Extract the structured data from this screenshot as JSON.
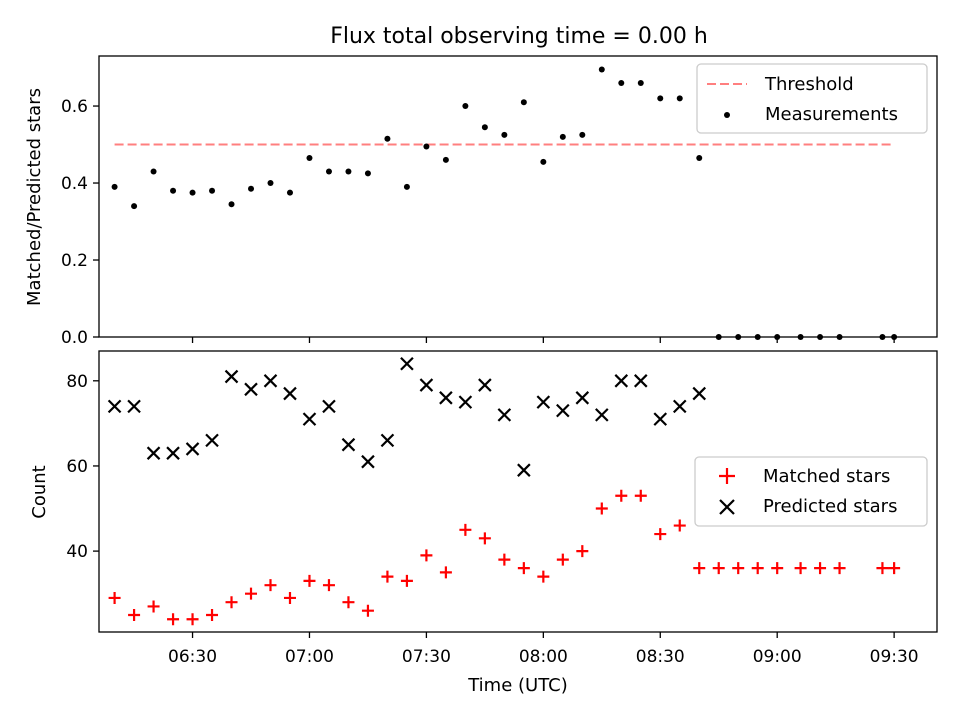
{
  "figure": {
    "title": "Flux total observing time = 0.00 h"
  },
  "chart_data": [
    {
      "type": "scatter",
      "xlabel": "",
      "ylabel": "Matched/Predicted stars",
      "xlim": [
        "06:06",
        "09:41"
      ],
      "ylim": [
        0,
        0.73
      ],
      "yticks": [
        0.0,
        0.2,
        0.4,
        0.6
      ],
      "ytick_labels": [
        "0.0",
        "0.2",
        "0.4",
        "0.6"
      ],
      "legend_position": "top-right",
      "grid": false,
      "series": [
        {
          "name": "Threshold",
          "kind": "dashed-line",
          "color": "#ff7f7f",
          "x": [
            "06:10",
            "09:30"
          ],
          "y": [
            0.5,
            0.5
          ]
        },
        {
          "name": "Measurements",
          "kind": "points",
          "color": "#000000",
          "x": [
            "06:10",
            "06:15",
            "06:20",
            "06:25",
            "06:30",
            "06:35",
            "06:40",
            "06:45",
            "06:50",
            "06:55",
            "07:00",
            "07:05",
            "07:10",
            "07:15",
            "07:20",
            "07:25",
            "07:30",
            "07:35",
            "07:40",
            "07:45",
            "07:50",
            "07:55",
            "08:00",
            "08:05",
            "08:10",
            "08:15",
            "08:20",
            "08:25",
            "08:30",
            "08:35",
            "08:40",
            "08:45",
            "08:50",
            "08:55",
            "09:00",
            "09:06",
            "09:11",
            "09:16",
            "09:27",
            "09:30"
          ],
          "y": [
            0.39,
            0.34,
            0.43,
            0.38,
            0.375,
            0.38,
            0.345,
            0.385,
            0.4,
            0.375,
            0.465,
            0.43,
            0.43,
            0.425,
            0.515,
            0.39,
            0.495,
            0.46,
            0.6,
            0.545,
            0.525,
            0.61,
            0.455,
            0.52,
            0.525,
            0.695,
            0.66,
            0.66,
            0.62,
            0.62,
            0.465,
            0.0,
            0.0,
            0.0,
            0.0,
            0.0,
            0.0,
            0.0,
            0.0,
            0.0
          ]
        }
      ]
    },
    {
      "type": "scatter",
      "xlabel": "Time (UTC)",
      "ylabel": "Count",
      "xlim": [
        "06:06",
        "09:41"
      ],
      "ylim": [
        21,
        87
      ],
      "yticks": [
        40,
        60,
        80
      ],
      "ytick_labels": [
        "40",
        "60",
        "80"
      ],
      "xticks": [
        "06:30",
        "07:00",
        "07:30",
        "08:00",
        "08:30",
        "09:00",
        "09:30"
      ],
      "xtick_labels": [
        "06:30",
        "07:00",
        "07:30",
        "08:00",
        "08:30",
        "09:00",
        "09:30"
      ],
      "legend_position": "center-right",
      "grid": false,
      "series": [
        {
          "name": "Matched stars",
          "marker": "+",
          "color": "#ff0000",
          "x": [
            "06:10",
            "06:15",
            "06:20",
            "06:25",
            "06:30",
            "06:35",
            "06:40",
            "06:45",
            "06:50",
            "06:55",
            "07:00",
            "07:05",
            "07:10",
            "07:15",
            "07:20",
            "07:25",
            "07:30",
            "07:35",
            "07:40",
            "07:45",
            "07:50",
            "07:55",
            "08:00",
            "08:05",
            "08:10",
            "08:15",
            "08:20",
            "08:25",
            "08:30",
            "08:35",
            "08:40",
            "08:45",
            "08:50",
            "08:55",
            "09:00",
            "09:06",
            "09:11",
            "09:16",
            "09:27",
            "09:30"
          ],
          "y": [
            29,
            25,
            27,
            24,
            24,
            25,
            28,
            30,
            32,
            29,
            33,
            32,
            28,
            26,
            34,
            33,
            39,
            35,
            45,
            43,
            38,
            36,
            34,
            38,
            40,
            50,
            53,
            53,
            44,
            46,
            36,
            36,
            36,
            36,
            36,
            36,
            36,
            36,
            36,
            36
          ]
        },
        {
          "name": "Predicted stars",
          "marker": "x",
          "color": "#000000",
          "x": [
            "06:10",
            "06:15",
            "06:20",
            "06:25",
            "06:30",
            "06:35",
            "06:40",
            "06:45",
            "06:50",
            "06:55",
            "07:00",
            "07:05",
            "07:10",
            "07:15",
            "07:20",
            "07:25",
            "07:30",
            "07:35",
            "07:40",
            "07:45",
            "07:50",
            "07:55",
            "08:00",
            "08:05",
            "08:10",
            "08:15",
            "08:20",
            "08:25",
            "08:30",
            "08:35",
            "08:40"
          ],
          "y": [
            74,
            74,
            63,
            63,
            64,
            66,
            81,
            78,
            80,
            77,
            71,
            74,
            65,
            61,
            66,
            84,
            79,
            76,
            75,
            79,
            72,
            59,
            75,
            73,
            76,
            72,
            80,
            80,
            71,
            74,
            77
          ]
        }
      ]
    }
  ]
}
